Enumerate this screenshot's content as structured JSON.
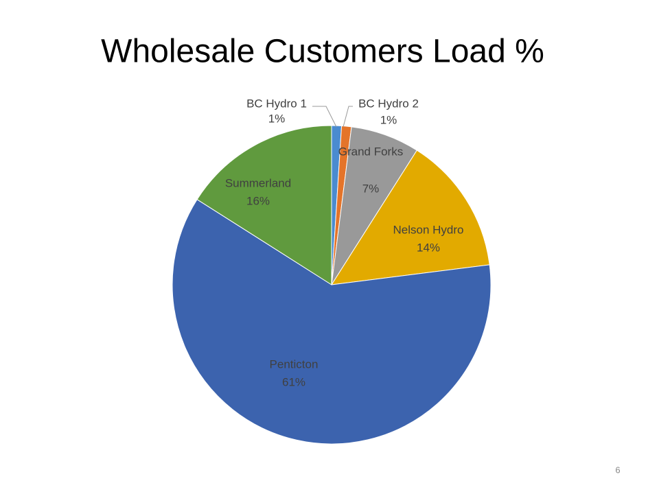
{
  "chart_data": {
    "type": "pie",
    "title": "Wholesale Customers Load %",
    "categories": [
      "BC Hydro 1",
      "BC Hydro 2",
      "Grand Forks",
      "Nelson Hydro",
      "Penticton",
      "Summerland"
    ],
    "values": [
      1,
      1,
      7,
      14,
      61,
      16
    ],
    "value_labels": [
      "1%",
      "1%",
      "7%",
      "14%",
      "61%",
      "16%"
    ],
    "colors": [
      "#4a8bd0",
      "#e4742a",
      "#999999",
      "#e2aa00",
      "#3c63ae",
      "#609a3e"
    ]
  },
  "slide_number": "6"
}
